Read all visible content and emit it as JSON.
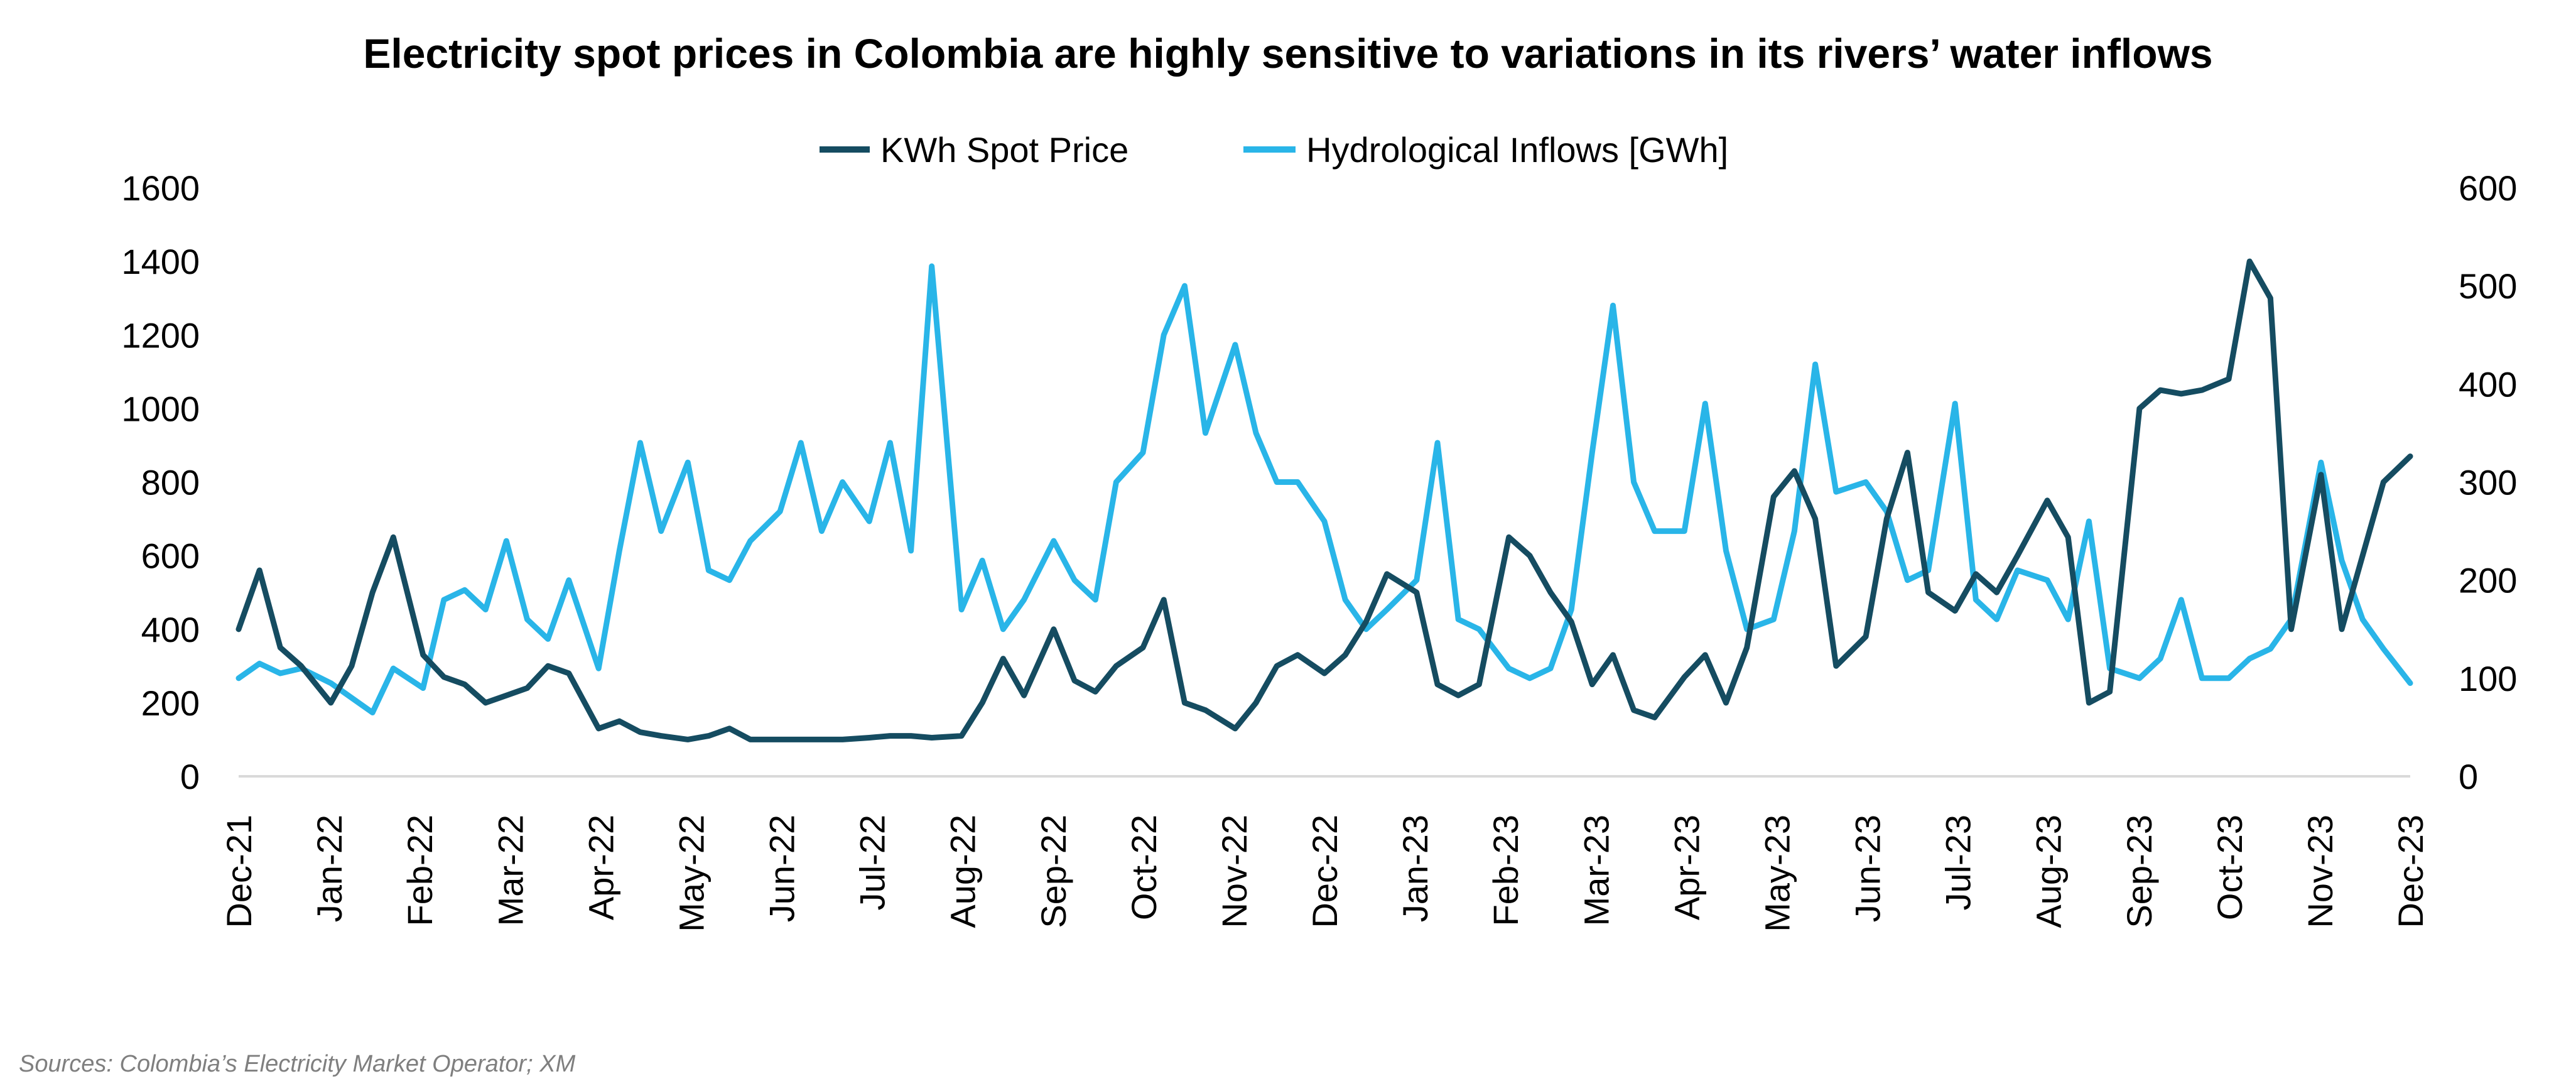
{
  "chart_data": {
    "type": "line",
    "title": "Electricity spot prices in Colombia are highly sensitive to variations in its rivers’ water inflows",
    "legend_position": "top",
    "grid": false,
    "source": "Sources: Colombia’s Electricity Market Operator; XM",
    "colors": {
      "price": "#154c61",
      "inflows": "#29b5e8",
      "axis": "#d9d9d9"
    },
    "x_ticks": [
      "Dec-21",
      "Jan-22",
      "Feb-22",
      "Mar-22",
      "Apr-22",
      "May-22",
      "Jun-22",
      "Jul-22",
      "Aug-22",
      "Sep-22",
      "Oct-22",
      "Nov-22",
      "Dec-22",
      "Jan-23",
      "Feb-23",
      "Mar-23",
      "Apr-23",
      "May-23",
      "Jun-23",
      "Jul-23",
      "Aug-23",
      "Sep-23",
      "Oct-23",
      "Nov-23",
      "Dec-23"
    ],
    "xlim": [
      "2021-12-01",
      "2023-12-01"
    ],
    "y_left": {
      "ylim": [
        0,
        1600
      ],
      "ticks": [
        "0",
        "200",
        "400",
        "600",
        "800",
        "1000",
        "1200",
        "1400",
        "1600"
      ]
    },
    "y_right": {
      "ylim": [
        0,
        600
      ],
      "ticks": [
        "0",
        "100",
        "200",
        "300",
        "400",
        "500",
        "600"
      ]
    },
    "x": [
      "2021-12-01",
      "2021-12-08",
      "2021-12-15",
      "2021-12-22",
      "2022-01-01",
      "2022-01-08",
      "2022-01-15",
      "2022-01-22",
      "2022-02-01",
      "2022-02-08",
      "2022-02-15",
      "2022-02-22",
      "2022-03-01",
      "2022-03-08",
      "2022-03-15",
      "2022-03-22",
      "2022-04-01",
      "2022-04-08",
      "2022-04-15",
      "2022-04-22",
      "2022-05-01",
      "2022-05-08",
      "2022-05-15",
      "2022-05-22",
      "2022-06-01",
      "2022-06-08",
      "2022-06-15",
      "2022-06-22",
      "2022-07-01",
      "2022-07-08",
      "2022-07-15",
      "2022-07-22",
      "2022-08-01",
      "2022-08-08",
      "2022-08-15",
      "2022-08-22",
      "2022-09-01",
      "2022-09-08",
      "2022-09-15",
      "2022-09-22",
      "2022-10-01",
      "2022-10-08",
      "2022-10-15",
      "2022-10-22",
      "2022-11-01",
      "2022-11-08",
      "2022-11-15",
      "2022-11-22",
      "2022-12-01",
      "2022-12-08",
      "2022-12-15",
      "2022-12-22",
      "2023-01-01",
      "2023-01-08",
      "2023-01-15",
      "2023-01-22",
      "2023-02-01",
      "2023-02-08",
      "2023-02-15",
      "2023-02-22",
      "2023-03-01",
      "2023-03-08",
      "2023-03-15",
      "2023-03-22",
      "2023-04-01",
      "2023-04-08",
      "2023-04-15",
      "2023-04-22",
      "2023-05-01",
      "2023-05-08",
      "2023-05-15",
      "2023-05-22",
      "2023-06-01",
      "2023-06-08",
      "2023-06-15",
      "2023-06-22",
      "2023-07-01",
      "2023-07-08",
      "2023-07-15",
      "2023-07-22",
      "2023-08-01",
      "2023-08-08",
      "2023-08-15",
      "2023-08-22",
      "2023-09-01",
      "2023-09-08",
      "2023-09-15",
      "2023-09-22",
      "2023-10-01",
      "2023-10-08",
      "2023-10-15",
      "2023-10-22",
      "2023-11-01",
      "2023-11-08",
      "2023-11-15",
      "2023-11-22",
      "2023-12-01"
    ],
    "series": [
      {
        "name": "KWh Spot Price",
        "axis": "left",
        "values": [
          400,
          560,
          350,
          300,
          200,
          300,
          500,
          650,
          330,
          270,
          250,
          200,
          220,
          240,
          300,
          280,
          130,
          150,
          120,
          110,
          100,
          110,
          130,
          100,
          100,
          100,
          100,
          100,
          105,
          110,
          110,
          105,
          110,
          200,
          320,
          220,
          400,
          260,
          230,
          300,
          350,
          480,
          200,
          180,
          130,
          200,
          300,
          330,
          280,
          330,
          420,
          550,
          500,
          250,
          220,
          250,
          650,
          600,
          500,
          420,
          250,
          330,
          180,
          160,
          270,
          330,
          200,
          350,
          760,
          830,
          700,
          300,
          380,
          700,
          880,
          500,
          450,
          550,
          500,
          600,
          750,
          650,
          200,
          230,
          1000,
          1050,
          1040,
          1050,
          1080,
          1400,
          1300,
          400,
          820,
          400,
          600,
          800,
          870
        ]
      },
      {
        "name": "Hydrological Inflows [GWh]",
        "axis": "right",
        "values": [
          100,
          115,
          105,
          110,
          95,
          80,
          65,
          110,
          90,
          180,
          190,
          170,
          240,
          160,
          140,
          200,
          110,
          230,
          340,
          250,
          320,
          210,
          200,
          240,
          270,
          340,
          250,
          300,
          260,
          340,
          230,
          520,
          170,
          220,
          150,
          180,
          240,
          200,
          180,
          300,
          330,
          450,
          500,
          350,
          440,
          350,
          300,
          300,
          260,
          180,
          150,
          170,
          200,
          340,
          160,
          150,
          110,
          100,
          110,
          170,
          330,
          480,
          300,
          250,
          250,
          380,
          230,
          150,
          160,
          250,
          420,
          290,
          300,
          270,
          200,
          210,
          380,
          180,
          160,
          210,
          200,
          160,
          260,
          110,
          100,
          120,
          180,
          100,
          100,
          120,
          130,
          160,
          320,
          220,
          160,
          130,
          95
        ]
      }
    ]
  }
}
